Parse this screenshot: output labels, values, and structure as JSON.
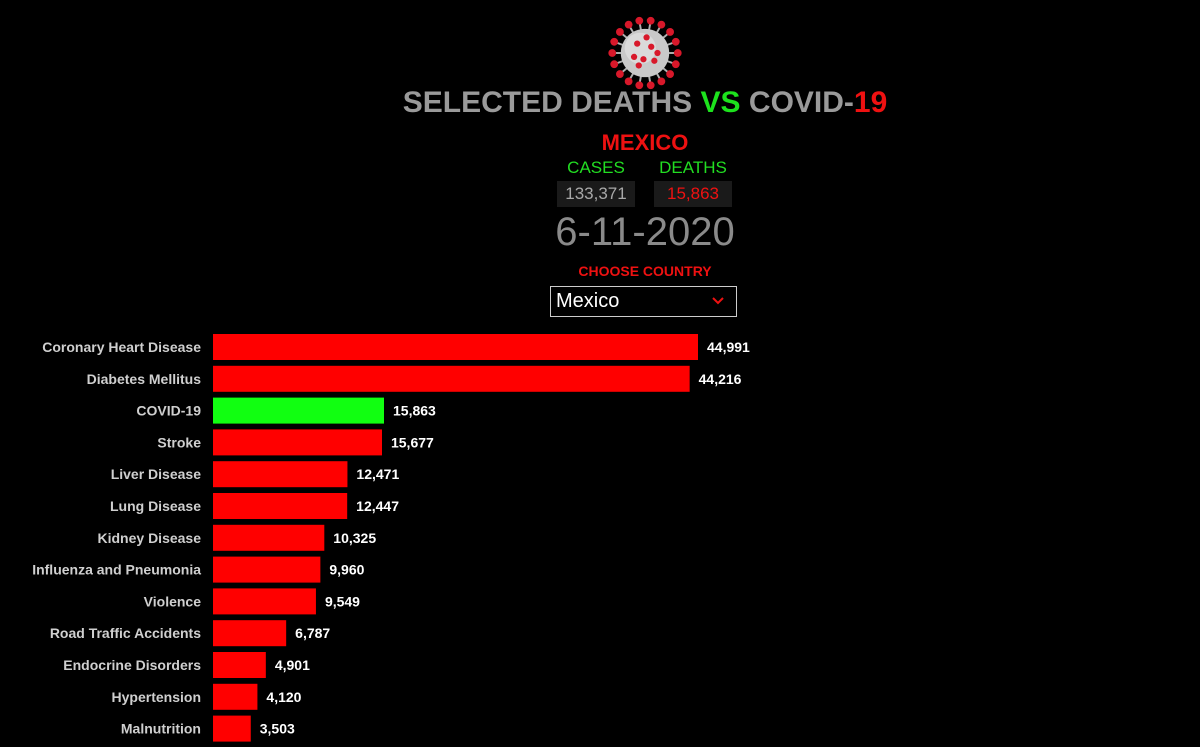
{
  "header": {
    "title_part1": "SELECTED DEATHS ",
    "title_vs": "VS",
    "title_part2": " COVID-",
    "title_19": "19",
    "country": "MEXICO"
  },
  "stats": {
    "cases_label": "CASES",
    "deaths_label": "DEATHS",
    "cases_value": "133,371",
    "deaths_value": "15,863",
    "date": "6-11-2020"
  },
  "selector": {
    "label": "CHOOSE COUNTRY",
    "selected": "Mexico",
    "chevron_icon": "chevron-down-icon"
  },
  "logo_icon": "coronavirus-icon",
  "colors": {
    "bar_default": "#ff0000",
    "bar_highlight": "#11ff11",
    "label": "#cfcfcf",
    "value_label": "#ffffff"
  },
  "chart_data": {
    "type": "bar",
    "orientation": "horizontal",
    "categories": [
      "Coronary Heart Disease",
      "Diabetes Mellitus",
      "COVID-19",
      "Stroke",
      "Liver Disease",
      "Lung Disease",
      "Kidney Disease",
      "Influenza and Pneumonia",
      "Violence",
      "Road Traffic Accidents",
      "Endocrine Disorders",
      "Hypertension",
      "Malnutrition"
    ],
    "values": [
      44991,
      44216,
      15863,
      15677,
      12471,
      12447,
      10325,
      9960,
      9549,
      6787,
      4901,
      4120,
      3503
    ],
    "value_labels": [
      "44,991",
      "44,216",
      "15,863",
      "15,677",
      "12,471",
      "12,447",
      "10,325",
      "9,960",
      "9,549",
      "6,787",
      "4,901",
      "4,120",
      "3,503"
    ],
    "highlight": "COVID-19",
    "title": "",
    "xlabel": "",
    "ylabel": "",
    "grid": false,
    "legend": "none"
  }
}
